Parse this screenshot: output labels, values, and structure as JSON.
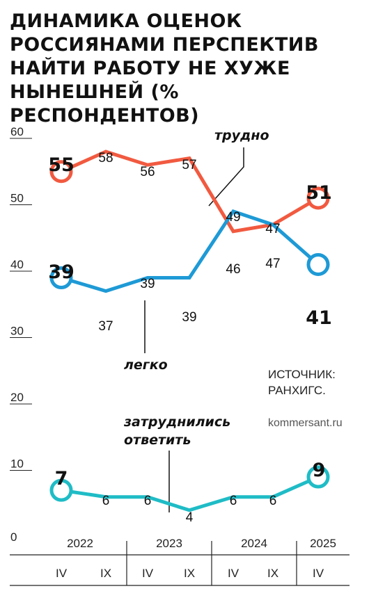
{
  "chart_data": {
    "type": "line",
    "title": "ДИНАМИКА ОЦЕНОК РОССИЯНАМИ ПЕРСПЕКТИВ НАЙТИ РАБОТУ НЕ ХУЖЕ НЫНЕШНЕЙ (% РЕСПОНДЕНТОВ)",
    "x": [
      "IV",
      "IX",
      "IV",
      "IX",
      "IV",
      "IX",
      "IV"
    ],
    "years": [
      "2022",
      "2023",
      "2024",
      "2025"
    ],
    "yticks": [
      0,
      10,
      20,
      30,
      40,
      50,
      60
    ],
    "ylim": [
      0,
      60
    ],
    "grid": false,
    "series": [
      {
        "name": "трудно",
        "color": "#f15a40",
        "values": [
          55,
          58,
          56,
          57,
          46,
          47,
          51
        ]
      },
      {
        "name": "легко",
        "color": "#1e9ad6",
        "values": [
          39,
          37,
          39,
          39,
          49,
          47,
          41
        ]
      },
      {
        "name": "затруднились ответить",
        "color": "#1fbcc6",
        "values": [
          7,
          6,
          6,
          4,
          6,
          6,
          9
        ]
      }
    ],
    "source": "ИСТОЧНИК: РАНХИГС.",
    "site": "kommersant.ru"
  }
}
